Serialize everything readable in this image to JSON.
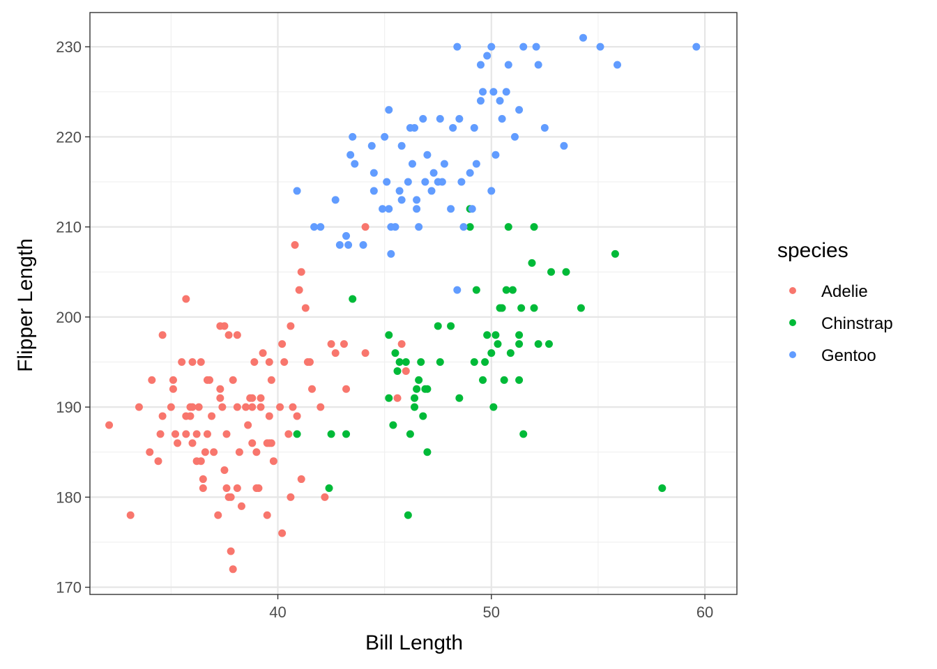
{
  "chart_data": {
    "type": "scatter",
    "xlabel": "Bill Length",
    "ylabel": "Flipper Length",
    "xlim": [
      31.2,
      61.5
    ],
    "ylim": [
      169.2,
      233.8
    ],
    "x_ticks": [
      40,
      50,
      60
    ],
    "y_ticks": [
      170,
      180,
      190,
      200,
      210,
      220,
      230
    ],
    "grid": true,
    "legend_title": "species",
    "legend_position": "right",
    "series": [
      {
        "name": "Adelie",
        "color": "#F8766D",
        "points": [
          [
            32.1,
            188
          ],
          [
            33.1,
            178
          ],
          [
            33.5,
            190
          ],
          [
            34.0,
            185
          ],
          [
            34.1,
            193
          ],
          [
            34.4,
            184
          ],
          [
            34.5,
            187
          ],
          [
            34.6,
            189
          ],
          [
            34.6,
            198
          ],
          [
            35.0,
            190
          ],
          [
            35.1,
            192
          ],
          [
            35.1,
            193
          ],
          [
            35.2,
            187
          ],
          [
            35.3,
            186
          ],
          [
            35.5,
            195
          ],
          [
            35.7,
            187
          ],
          [
            35.7,
            189
          ],
          [
            35.7,
            202
          ],
          [
            35.9,
            190
          ],
          [
            35.9,
            189
          ],
          [
            36.0,
            190
          ],
          [
            36.0,
            195
          ],
          [
            36.0,
            186
          ],
          [
            36.2,
            187
          ],
          [
            36.2,
            184
          ],
          [
            36.3,
            190
          ],
          [
            36.4,
            184
          ],
          [
            36.4,
            195
          ],
          [
            36.5,
            182
          ],
          [
            36.5,
            181
          ],
          [
            36.6,
            185
          ],
          [
            36.7,
            193
          ],
          [
            36.7,
            187
          ],
          [
            36.8,
            193
          ],
          [
            36.9,
            189
          ],
          [
            37.0,
            185
          ],
          [
            37.2,
            178
          ],
          [
            37.3,
            192
          ],
          [
            37.3,
            191
          ],
          [
            37.3,
            199
          ],
          [
            37.4,
            190
          ],
          [
            37.5,
            199
          ],
          [
            37.5,
            183
          ],
          [
            37.6,
            181
          ],
          [
            37.6,
            187
          ],
          [
            37.7,
            180
          ],
          [
            37.7,
            198
          ],
          [
            37.8,
            180
          ],
          [
            37.8,
            174
          ],
          [
            37.9,
            172
          ],
          [
            37.9,
            193
          ],
          [
            38.1,
            181
          ],
          [
            38.1,
            190
          ],
          [
            38.1,
            198
          ],
          [
            38.2,
            185
          ],
          [
            38.3,
            179
          ],
          [
            38.5,
            190
          ],
          [
            38.6,
            188
          ],
          [
            38.7,
            191
          ],
          [
            38.8,
            190
          ],
          [
            38.8,
            191
          ],
          [
            38.9,
            195
          ],
          [
            39.0,
            185
          ],
          [
            39.0,
            181
          ],
          [
            39.1,
            181
          ],
          [
            39.2,
            190
          ],
          [
            39.2,
            191
          ],
          [
            39.3,
            196
          ],
          [
            39.5,
            186
          ],
          [
            39.5,
            178
          ],
          [
            39.6,
            186
          ],
          [
            39.6,
            195
          ],
          [
            39.7,
            186
          ],
          [
            39.7,
            193
          ],
          [
            39.8,
            184
          ],
          [
            40.2,
            176
          ],
          [
            40.2,
            197
          ],
          [
            40.3,
            195
          ],
          [
            40.5,
            187
          ],
          [
            40.6,
            180
          ],
          [
            40.6,
            199
          ],
          [
            40.7,
            190
          ],
          [
            40.8,
            208
          ],
          [
            40.9,
            189
          ],
          [
            41.0,
            203
          ],
          [
            41.1,
            205
          ],
          [
            41.3,
            201
          ],
          [
            41.4,
            195
          ],
          [
            41.5,
            195
          ],
          [
            41.6,
            192
          ],
          [
            42.0,
            190
          ],
          [
            42.2,
            180
          ],
          [
            42.5,
            197
          ],
          [
            42.7,
            196
          ],
          [
            43.1,
            197
          ],
          [
            43.2,
            192
          ],
          [
            44.1,
            196
          ],
          [
            44.1,
            210
          ],
          [
            45.8,
            197
          ],
          [
            46.0,
            194
          ],
          [
            45.6,
            191
          ],
          [
            38.8,
            186
          ],
          [
            40.1,
            190
          ],
          [
            39.6,
            189
          ],
          [
            41.1,
            182
          ]
        ]
      },
      {
        "name": "Chinstrap",
        "color": "#00BA38",
        "points": [
          [
            40.9,
            187
          ],
          [
            42.4,
            181
          ],
          [
            42.5,
            187
          ],
          [
            43.2,
            187
          ],
          [
            43.5,
            202
          ],
          [
            45.2,
            198
          ],
          [
            45.2,
            191
          ],
          [
            45.4,
            188
          ],
          [
            45.5,
            196
          ],
          [
            45.6,
            194
          ],
          [
            45.7,
            195
          ],
          [
            46.0,
            195
          ],
          [
            46.1,
            178
          ],
          [
            46.2,
            187
          ],
          [
            46.4,
            191
          ],
          [
            46.4,
            190
          ],
          [
            46.5,
            192
          ],
          [
            46.6,
            193
          ],
          [
            46.7,
            195
          ],
          [
            46.8,
            189
          ],
          [
            47.0,
            192
          ],
          [
            47.0,
            185
          ],
          [
            47.5,
            199
          ],
          [
            47.6,
            195
          ],
          [
            48.1,
            199
          ],
          [
            48.5,
            191
          ],
          [
            49.0,
            210
          ],
          [
            49.0,
            212
          ],
          [
            49.2,
            195
          ],
          [
            49.3,
            203
          ],
          [
            49.6,
            193
          ],
          [
            49.7,
            195
          ],
          [
            49.8,
            198
          ],
          [
            50.0,
            196
          ],
          [
            50.1,
            190
          ],
          [
            50.2,
            198
          ],
          [
            50.3,
            197
          ],
          [
            50.5,
            201
          ],
          [
            50.6,
            193
          ],
          [
            50.7,
            203
          ],
          [
            50.8,
            210
          ],
          [
            50.9,
            196
          ],
          [
            51.0,
            203
          ],
          [
            51.3,
            193
          ],
          [
            51.3,
            197
          ],
          [
            51.4,
            201
          ],
          [
            51.5,
            187
          ],
          [
            51.9,
            206
          ],
          [
            52.0,
            201
          ],
          [
            52.0,
            210
          ],
          [
            52.2,
            197
          ],
          [
            52.7,
            197
          ],
          [
            52.8,
            205
          ],
          [
            53.5,
            205
          ],
          [
            54.2,
            201
          ],
          [
            55.8,
            207
          ],
          [
            58.0,
            181
          ],
          [
            46.9,
            192
          ],
          [
            50.4,
            201
          ],
          [
            51.3,
            198
          ]
        ]
      },
      {
        "name": "Gentoo",
        "color": "#619CFF",
        "points": [
          [
            40.9,
            214
          ],
          [
            41.7,
            210
          ],
          [
            42.0,
            210
          ],
          [
            42.7,
            213
          ],
          [
            42.9,
            208
          ],
          [
            43.2,
            209
          ],
          [
            43.3,
            208
          ],
          [
            43.4,
            218
          ],
          [
            43.5,
            220
          ],
          [
            43.6,
            217
          ],
          [
            44.0,
            208
          ],
          [
            44.4,
            219
          ],
          [
            44.5,
            214
          ],
          [
            44.9,
            212
          ],
          [
            45.0,
            220
          ],
          [
            45.1,
            215
          ],
          [
            45.2,
            212
          ],
          [
            45.2,
            223
          ],
          [
            45.3,
            210
          ],
          [
            45.5,
            210
          ],
          [
            45.7,
            214
          ],
          [
            45.8,
            219
          ],
          [
            46.1,
            215
          ],
          [
            46.2,
            221
          ],
          [
            46.3,
            217
          ],
          [
            46.4,
            221
          ],
          [
            46.5,
            213
          ],
          [
            46.6,
            210
          ],
          [
            46.8,
            222
          ],
          [
            47.0,
            218
          ],
          [
            47.2,
            214
          ],
          [
            47.3,
            216
          ],
          [
            47.5,
            215
          ],
          [
            47.7,
            215
          ],
          [
            48.1,
            212
          ],
          [
            48.2,
            221
          ],
          [
            48.4,
            203
          ],
          [
            48.5,
            222
          ],
          [
            48.7,
            210
          ],
          [
            49.0,
            216
          ],
          [
            49.1,
            212
          ],
          [
            49.2,
            221
          ],
          [
            49.3,
            217
          ],
          [
            49.5,
            224
          ],
          [
            49.6,
            225
          ],
          [
            49.8,
            229
          ],
          [
            50.0,
            230
          ],
          [
            50.1,
            225
          ],
          [
            50.2,
            218
          ],
          [
            50.4,
            224
          ],
          [
            50.5,
            222
          ],
          [
            50.7,
            225
          ],
          [
            50.8,
            228
          ],
          [
            51.1,
            220
          ],
          [
            51.3,
            223
          ],
          [
            51.5,
            230
          ],
          [
            52.1,
            230
          ],
          [
            52.2,
            228
          ],
          [
            52.5,
            221
          ],
          [
            53.4,
            219
          ],
          [
            54.3,
            231
          ],
          [
            55.1,
            230
          ],
          [
            55.9,
            228
          ],
          [
            59.6,
            230
          ],
          [
            45.3,
            207
          ],
          [
            44.5,
            216
          ],
          [
            46.5,
            212
          ],
          [
            47.8,
            217
          ],
          [
            48.4,
            230
          ],
          [
            49.5,
            228
          ],
          [
            47.6,
            222
          ],
          [
            45.8,
            213
          ],
          [
            46.9,
            215
          ],
          [
            48.6,
            215
          ],
          [
            50.0,
            214
          ]
        ]
      }
    ]
  }
}
